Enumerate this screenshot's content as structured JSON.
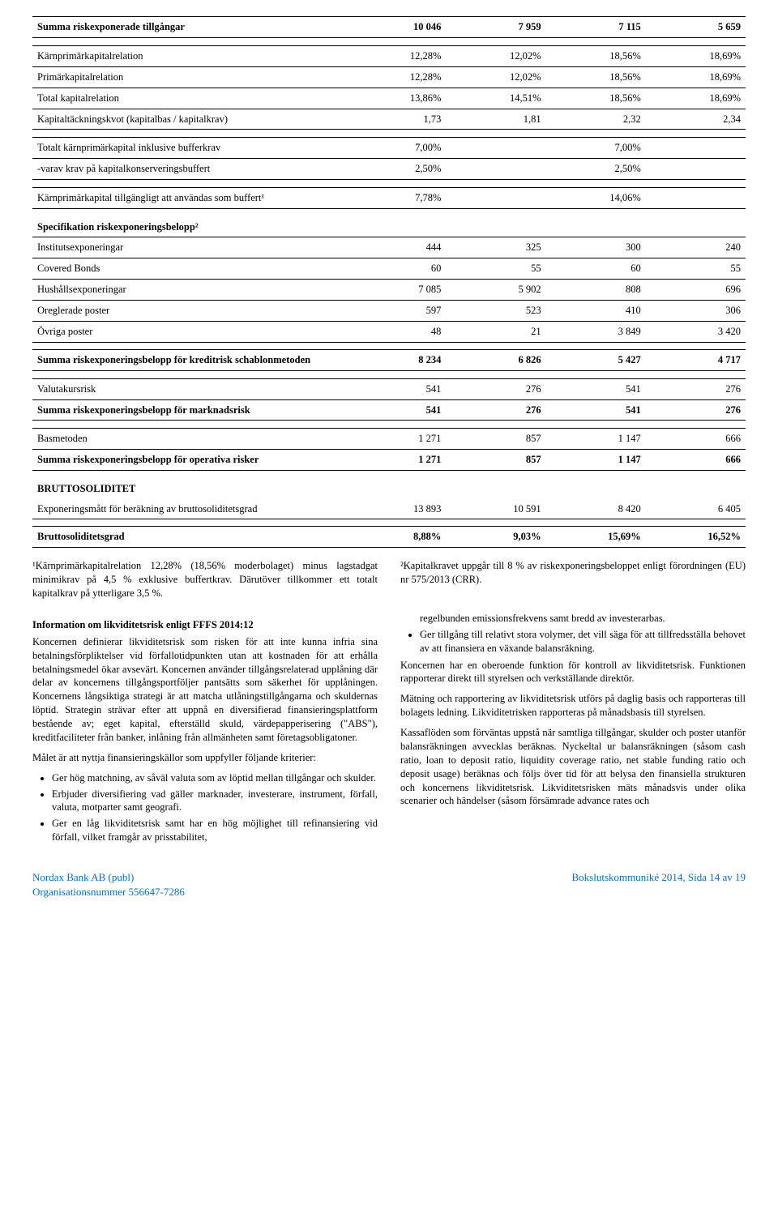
{
  "table": {
    "rows": [
      {
        "kind": "data",
        "bold": true,
        "bordertop": true,
        "borderbot": true,
        "cells": [
          "Summa riskexponerade tillgångar",
          "10 046",
          "7 959",
          "7 115",
          "5 659"
        ]
      },
      {
        "kind": "spacer"
      },
      {
        "kind": "data",
        "bordertop": true,
        "cells": [
          "Kärnprimärkapitalrelation",
          "12,28%",
          "12,02%",
          "18,56%",
          "18,69%"
        ]
      },
      {
        "kind": "data",
        "bordertop": true,
        "cells": [
          "Primärkapitalrelation",
          "12,28%",
          "12,02%",
          "18,56%",
          "18,69%"
        ]
      },
      {
        "kind": "data",
        "bordertop": true,
        "cells": [
          "Total kapitalrelation",
          "13,86%",
          "14,51%",
          "18,56%",
          "18,69%"
        ]
      },
      {
        "kind": "data",
        "bordertop": true,
        "borderbot": true,
        "cells": [
          "Kapitaltäckningskvot (kapitalbas / kapitalkrav)",
          "1,73",
          "1,81",
          "2,32",
          "2,34"
        ]
      },
      {
        "kind": "spacer"
      },
      {
        "kind": "data",
        "bordertop": true,
        "cells": [
          "Totalt kärnprimärkapital inklusive bufferkrav",
          "7,00%",
          "",
          "7,00%",
          ""
        ]
      },
      {
        "kind": "data",
        "bordertop": true,
        "borderbot": true,
        "cells": [
          "-varav krav på kapitalkonserveringsbuffert",
          "2,50%",
          "",
          "2,50%",
          ""
        ]
      },
      {
        "kind": "spacer"
      },
      {
        "kind": "data",
        "bordertop": true,
        "borderbot": true,
        "cells": [
          "Kärnprimärkapital tillgängligt att användas som buffert¹",
          "7,78%",
          "",
          "14,06%",
          ""
        ]
      },
      {
        "kind": "spacer"
      },
      {
        "kind": "section",
        "cells": [
          "Specifikation riskexponeringsbelopp²",
          "",
          "",
          "",
          ""
        ]
      },
      {
        "kind": "data",
        "bordertop": true,
        "cells": [
          "Institutsexponeringar",
          "444",
          "325",
          "300",
          "240"
        ]
      },
      {
        "kind": "data",
        "bordertop": true,
        "cells": [
          "Covered Bonds",
          "60",
          "55",
          "60",
          "55"
        ]
      },
      {
        "kind": "data",
        "bordertop": true,
        "cells": [
          "Hushållsexponeringar",
          "7 085",
          "5 902",
          "808",
          "696"
        ]
      },
      {
        "kind": "data",
        "bordertop": true,
        "cells": [
          "Oreglerade poster",
          "597",
          "523",
          "410",
          "306"
        ]
      },
      {
        "kind": "data",
        "bordertop": true,
        "borderbot": true,
        "cells": [
          "Övriga poster",
          "48",
          "21",
          "3 849",
          "3 420"
        ]
      },
      {
        "kind": "spacer-sm"
      },
      {
        "kind": "data",
        "bold": true,
        "bordertop": true,
        "borderbot": true,
        "cells": [
          "Summa riskexponeringsbelopp för kreditrisk schablonmetoden",
          "8 234",
          "6 826",
          "5 427",
          "4 717"
        ]
      },
      {
        "kind": "spacer"
      },
      {
        "kind": "data",
        "bordertop": true,
        "borderbot": true,
        "cells": [
          "Valutakursrisk",
          "541",
          "276",
          "541",
          "276"
        ]
      },
      {
        "kind": "data",
        "bold": true,
        "borderbot": true,
        "cells": [
          "Summa riskexponeringsbelopp för marknadsrisk",
          "541",
          "276",
          "541",
          "276"
        ]
      },
      {
        "kind": "spacer"
      },
      {
        "kind": "data",
        "bordertop": true,
        "borderbot": true,
        "cells": [
          "Basmetoden",
          "1 271",
          "857",
          "1 147",
          "666"
        ]
      },
      {
        "kind": "data",
        "bold": true,
        "borderbot": true,
        "cells": [
          "Summa riskexponeringsbelopp för operativa risker",
          "1 271",
          "857",
          "1 147",
          "666"
        ]
      },
      {
        "kind": "spacer"
      },
      {
        "kind": "section",
        "cells": [
          "BRUTTOSOLIDITET",
          "",
          "",
          "",
          ""
        ]
      },
      {
        "kind": "data",
        "borderbot": true,
        "cells": [
          "Exponeringsmått för beräkning av bruttosoliditetsgrad",
          "13 893",
          "10 591",
          "8 420",
          "6 405"
        ]
      },
      {
        "kind": "spacer-sm"
      },
      {
        "kind": "data",
        "bold": true,
        "bordertop": true,
        "borderbot": true,
        "cells": [
          "Bruttosoliditetsgrad",
          "8,88%",
          "9,03%",
          "15,69%",
          "16,52%"
        ]
      }
    ]
  },
  "footnotes": {
    "left": "¹Kärnprimärkapitalrelation 12,28% (18,56% moderbolaget) minus lagstadgat minimikrav på 4,5 % exklusive buffertkrav. Därutöver tillkommer ett totalt kapitalkrav på ytterligare 3,5 %.",
    "right": "²Kapitalkravet uppgår till 8 % av riskexponeringsbeloppet enligt förordningen (EU) nr 575/2013 (CRR)."
  },
  "body": {
    "left": {
      "heading": "Information om likviditetsrisk enligt FFFS 2014:12",
      "p1": "Koncernen definierar likviditetsrisk som risken för att inte kunna infria sina betalningsförpliktelser vid förfallotidpunkten utan att kostnaden för att erhålla betalningsmedel ökar avsevärt. Koncernen använder tillgångsrelaterad upplåning där delar av koncernens tillgångsportföljer pantsätts som säkerhet för upplåningen. Koncernens långsiktiga strategi är att matcha utlåningstillgångarna och skuldernas löptid. Strategin strävar efter att uppnå en diversifierad finansieringsplattform bestående av; eget kapital, efterställd skuld, värdepapperisering (\"ABS\"), kreditfaciliteter från banker, inlåning från allmänheten samt företagsobligatoner.",
      "p2": "Målet är att nyttja finansieringskällor som uppfyller följande kriterier:",
      "bullets": [
        "Ger hög matchning, av såväl valuta som av löptid mellan tillgångar och skulder.",
        "Erbjuder diversifiering vad gäller marknader, investerare, instrument, förfall, valuta, motparter samt geografi.",
        "Ger en låg likviditetsrisk samt har en hög möjlighet till refinansiering vid förfall, vilket framgår av prisstabilitet,"
      ]
    },
    "right": {
      "bullet_cont": "regelbunden emissionsfrekvens samt bredd av investerarbas.",
      "bullets": [
        "Ger tillgång till relativt stora volymer, det vill säga för att tillfredsställa behovet av att finansiera en växande balansräkning."
      ],
      "p1": "Koncernen har en oberoende funktion för kontroll av likviditetsrisk. Funktionen rapporterar direkt till styrelsen och verkställande direktör.",
      "p2": "Mätning och rapportering av likviditetsrisk utförs på daglig basis och rapporteras till bolagets ledning. Likviditetrisken rapporteras på månadsbasis till styrelsen.",
      "p3": "Kassaflöden som förväntas uppstå när samtliga tillgångar, skulder och poster utanför balansräkningen avvecklas beräknas. Nyckeltal ur balansräkningen (såsom cash ratio, loan to deposit ratio, liquidity coverage ratio, net stable funding ratio och deposit usage) beräknas och följs över tid för att belysa den finansiella strukturen och koncernens likviditetsrisk. Likviditetsrisken mäts månadsvis under olika scenarier och händelser (såsom försämrade advance rates och"
    }
  },
  "footer": {
    "left1": "Nordax Bank AB (publ)",
    "left2": "Organisationsnummer 556647-7286",
    "right": "Bokslutskommuniké 2014, Sida 14 av 19"
  }
}
